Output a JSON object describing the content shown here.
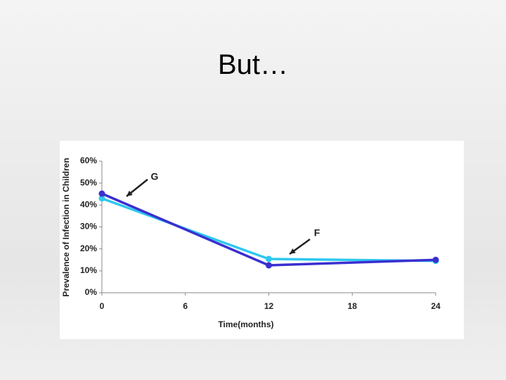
{
  "title": "But…",
  "chart_data": {
    "type": "line",
    "x_label": "Time(months)",
    "y_label": "Prevalence of Infection in Children",
    "x": [
      0,
      12,
      24
    ],
    "series": [
      {
        "color": "#3a2fd0",
        "values": [
          45.2,
          12.5,
          15
        ]
      },
      {
        "color": "#2ec8f0",
        "values": [
          43,
          15.4,
          14.5
        ]
      }
    ],
    "annotations": [
      {
        "text": "G"
      },
      {
        "text": "F"
      }
    ],
    "xlim": [
      0,
      24
    ],
    "xticks": [
      0,
      6,
      12,
      18,
      24
    ],
    "ylim": [
      0,
      60
    ],
    "yticks": [
      {
        "value": 0,
        "label": "0%"
      },
      {
        "value": 10,
        "label": "10%"
      },
      {
        "value": 20,
        "label": "20%"
      },
      {
        "value": 30,
        "label": "30%"
      },
      {
        "value": 40,
        "label": "40%"
      },
      {
        "value": 50,
        "label": "50%"
      },
      {
        "value": 60,
        "label": "60%"
      }
    ]
  }
}
